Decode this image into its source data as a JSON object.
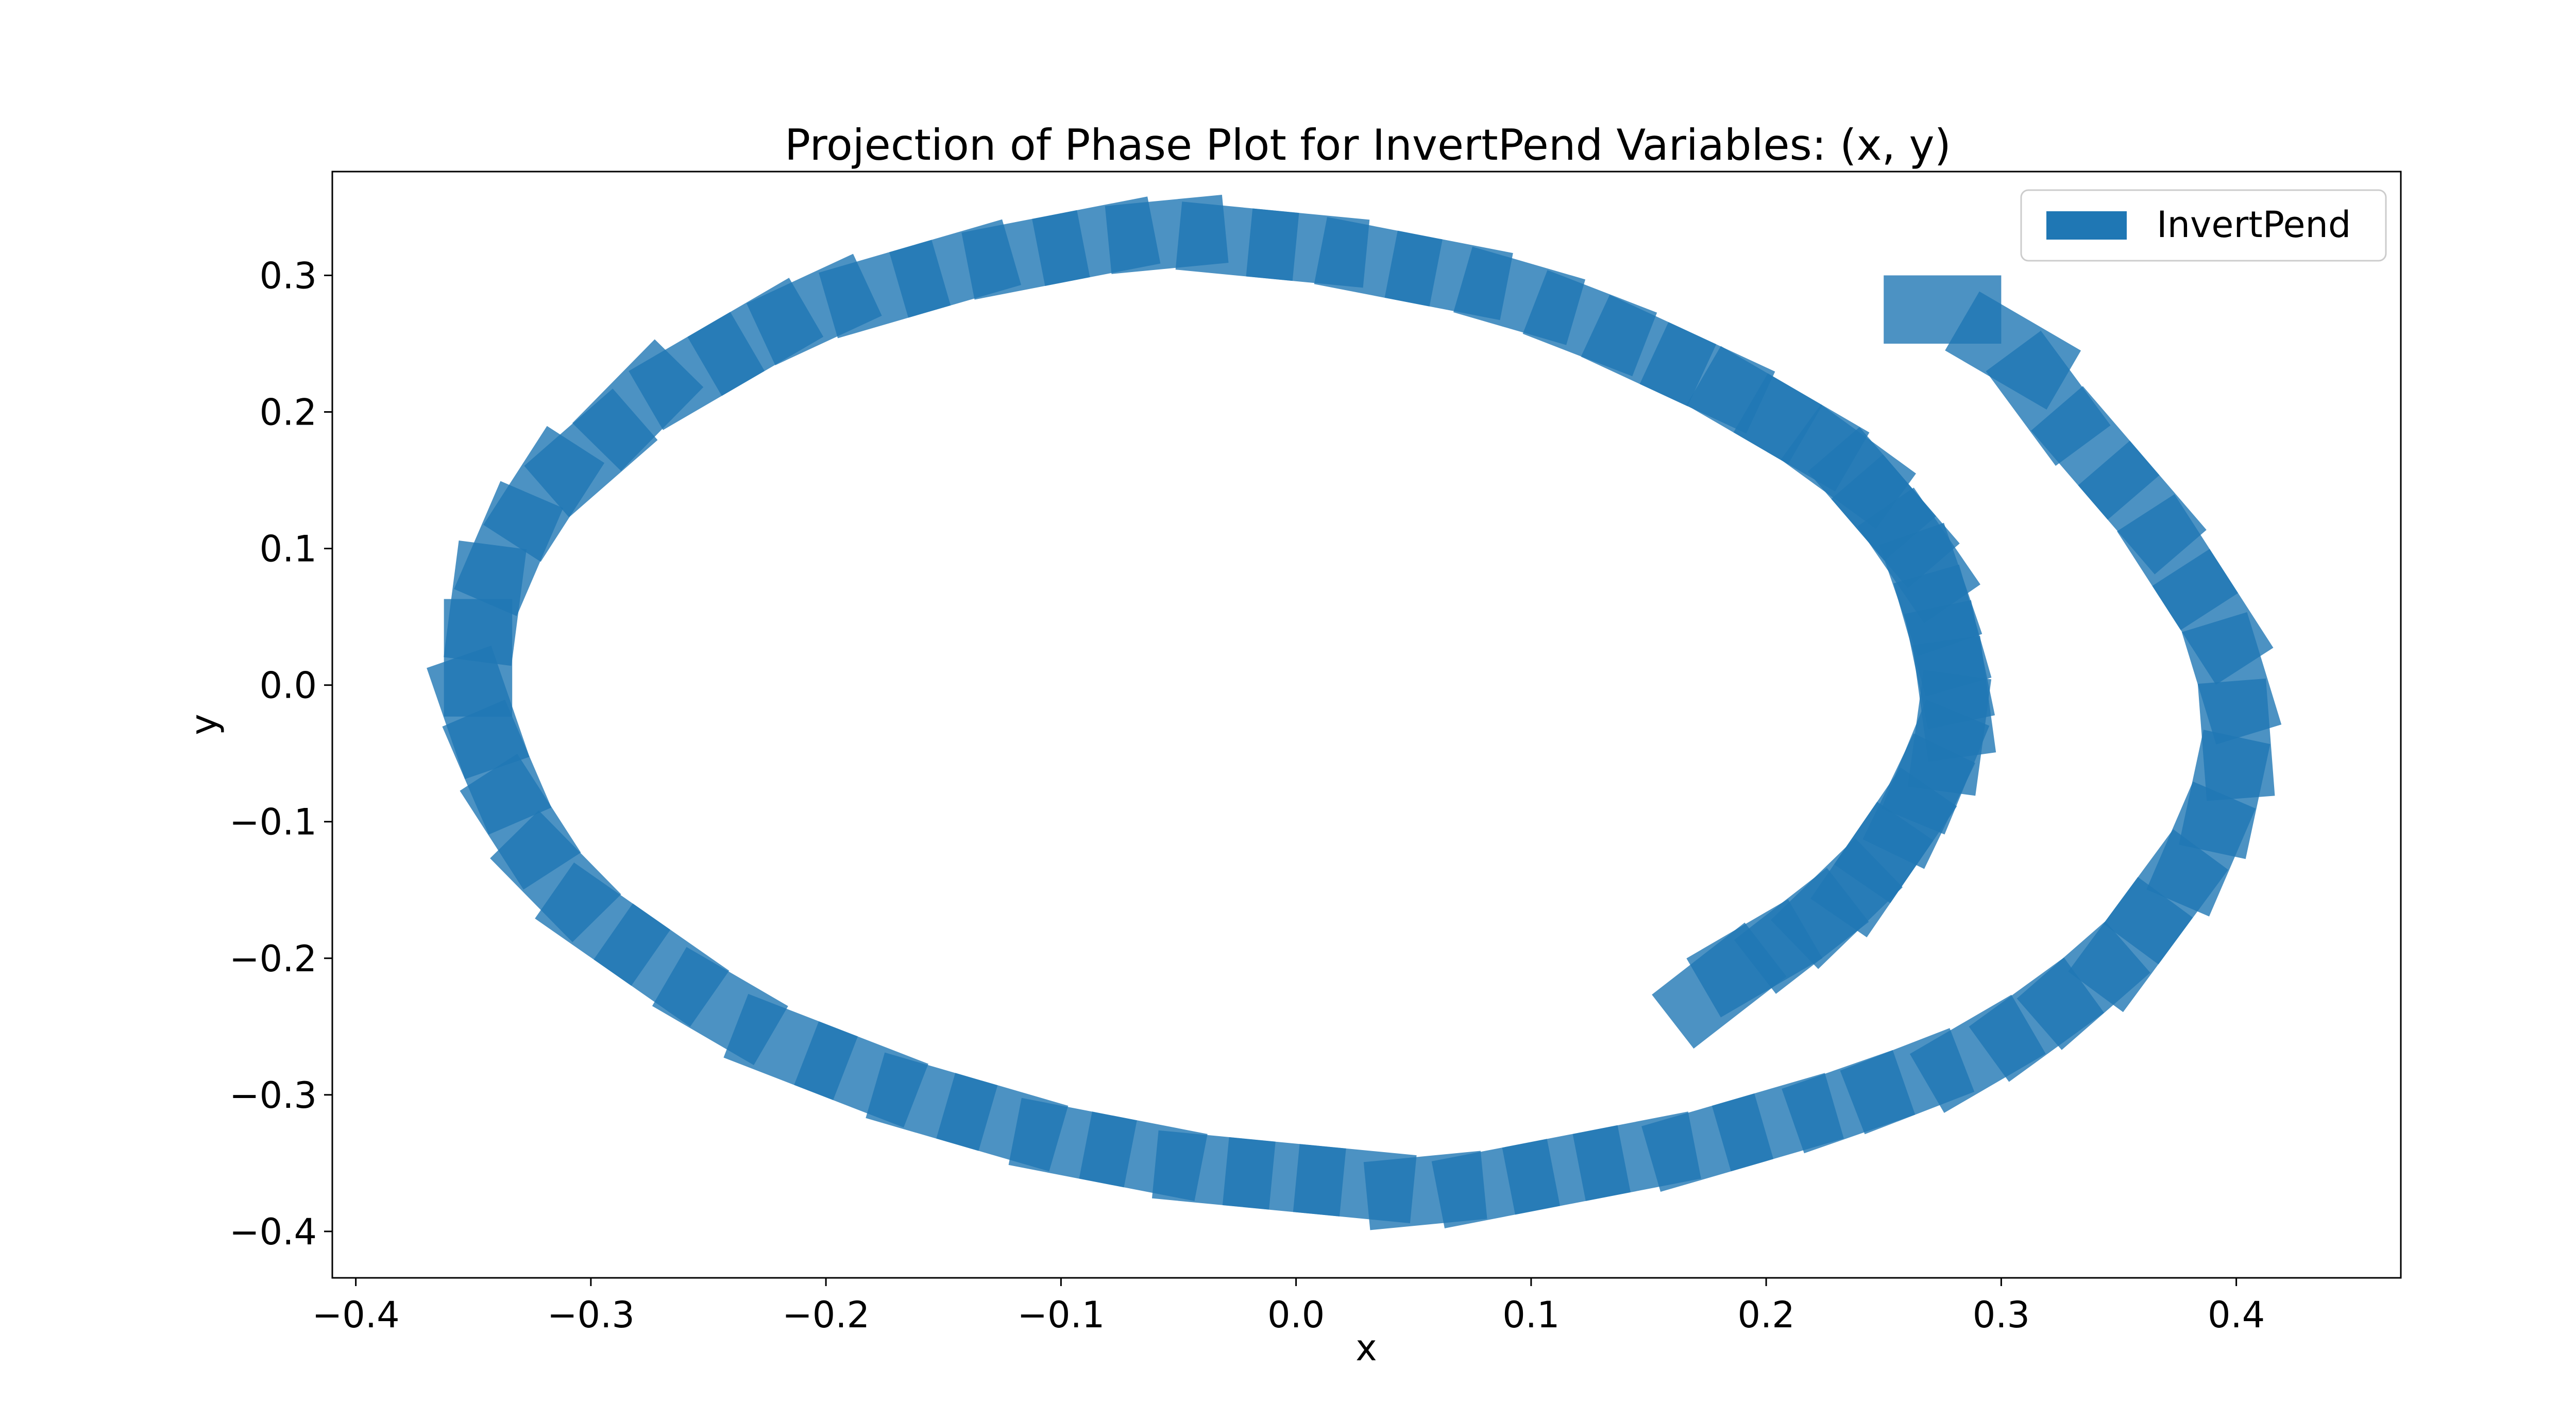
{
  "chart_data": {
    "type": "scatter",
    "title": "Projection of Phase Plot for InvertPend Variables: (x, y)",
    "xlabel": "x",
    "ylabel": "y",
    "xlim": [
      -0.41,
      0.47
    ],
    "ylim": [
      -0.434,
      0.376
    ],
    "xticks": [
      -0.4,
      -0.3,
      -0.2,
      -0.1,
      0.0,
      0.1,
      0.2,
      0.3,
      0.4
    ],
    "xtick_labels": [
      "−0.4",
      "−0.3",
      "−0.2",
      "−0.1",
      "0.0",
      "0.1",
      "0.2",
      "0.3",
      "0.4"
    ],
    "yticks": [
      0.3,
      0.2,
      0.1,
      0.0,
      -0.1,
      -0.2,
      -0.3,
      -0.4
    ],
    "ytick_labels": [
      "0.3",
      "0.2",
      "0.1",
      "0.0",
      "−0.1",
      "−0.2",
      "−0.3",
      "−0.4"
    ],
    "grid": false,
    "legend_position": "top-right",
    "color": "#1f77b4",
    "fill_opacity": 0.8,
    "series": [
      {
        "name": "InvertPend",
        "box_half_size": [
          0.025,
          0.025
        ],
        "points": [
          [
            0.275,
            0.275
          ],
          [
            0.305,
            0.245
          ],
          [
            0.32,
            0.21
          ],
          [
            0.34,
            0.17
          ],
          [
            0.36,
            0.13
          ],
          [
            0.375,
            0.09
          ],
          [
            0.39,
            0.05
          ],
          [
            0.398,
            0.005
          ],
          [
            0.4,
            -0.04
          ],
          [
            0.395,
            -0.08
          ],
          [
            0.385,
            -0.12
          ],
          [
            0.37,
            -0.155
          ],
          [
            0.355,
            -0.19
          ],
          [
            0.335,
            -0.22
          ],
          [
            0.315,
            -0.245
          ],
          [
            0.29,
            -0.27
          ],
          [
            0.26,
            -0.29
          ],
          [
            0.235,
            -0.305
          ],
          [
            0.205,
            -0.32
          ],
          [
            0.175,
            -0.335
          ],
          [
            0.145,
            -0.345
          ],
          [
            0.115,
            -0.355
          ],
          [
            0.085,
            -0.365
          ],
          [
            0.055,
            -0.37
          ],
          [
            0.025,
            -0.365
          ],
          [
            -0.005,
            -0.36
          ],
          [
            -0.035,
            -0.355
          ],
          [
            -0.065,
            -0.345
          ],
          [
            -0.095,
            -0.335
          ],
          [
            -0.125,
            -0.32
          ],
          [
            -0.155,
            -0.305
          ],
          [
            -0.185,
            -0.285
          ],
          [
            -0.215,
            -0.265
          ],
          [
            -0.245,
            -0.235
          ],
          [
            -0.27,
            -0.205
          ],
          [
            -0.295,
            -0.175
          ],
          [
            -0.315,
            -0.14
          ],
          [
            -0.33,
            -0.1
          ],
          [
            -0.34,
            -0.06
          ],
          [
            -0.348,
            -0.02
          ],
          [
            -0.348,
            0.02
          ],
          [
            -0.345,
            0.06
          ],
          [
            -0.335,
            0.1
          ],
          [
            -0.32,
            0.14
          ],
          [
            -0.3,
            0.17
          ],
          [
            -0.28,
            0.205
          ],
          [
            -0.255,
            0.23
          ],
          [
            -0.23,
            0.255
          ],
          [
            -0.205,
            0.275
          ],
          [
            -0.175,
            0.29
          ],
          [
            -0.145,
            0.305
          ],
          [
            -0.115,
            0.315
          ],
          [
            -0.085,
            0.325
          ],
          [
            -0.055,
            0.33
          ],
          [
            -0.025,
            0.325
          ],
          [
            0.005,
            0.32
          ],
          [
            0.035,
            0.31
          ],
          [
            0.065,
            0.3
          ],
          [
            0.095,
            0.285
          ],
          [
            0.125,
            0.265
          ],
          [
            0.15,
            0.245
          ],
          [
            0.175,
            0.225
          ],
          [
            0.195,
            0.205
          ],
          [
            0.215,
            0.185
          ],
          [
            0.235,
            0.16
          ],
          [
            0.245,
            0.14
          ],
          [
            0.255,
            0.12
          ],
          [
            0.265,
            0.095
          ],
          [
            0.27,
            0.07
          ],
          [
            0.275,
            0.04
          ],
          [
            0.278,
            0.015
          ],
          [
            0.28,
            -0.01
          ],
          [
            0.278,
            -0.035
          ],
          [
            0.272,
            -0.06
          ],
          [
            0.265,
            -0.085
          ],
          [
            0.255,
            -0.11
          ],
          [
            0.245,
            -0.135
          ],
          [
            0.23,
            -0.16
          ],
          [
            0.215,
            -0.18
          ],
          [
            0.195,
            -0.2
          ],
          [
            0.18,
            -0.22
          ]
        ]
      }
    ]
  }
}
